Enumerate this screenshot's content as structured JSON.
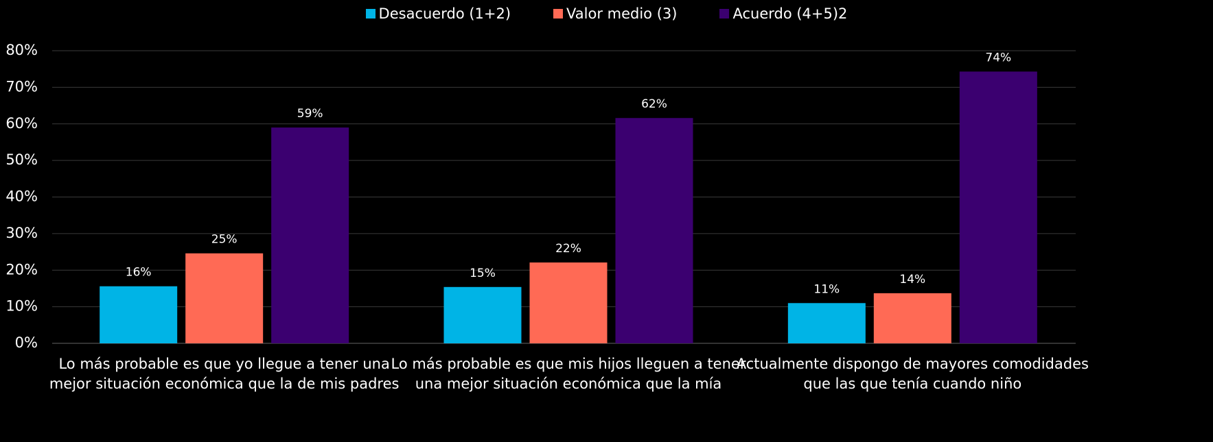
{
  "chart_data": {
    "type": "bar",
    "categories": [
      "Lo más probable es que yo llegue a tener una mejor situación económica que la de mis padres",
      "Lo más probable es que mis hijos lleguen a tener una mejor situación económica que la mía",
      "Actualmente dispongo de mayores comodidades que las que tenía cuando niño"
    ],
    "series": [
      {
        "name": "Desacuerdo (1+2)",
        "color": "#00b4e6",
        "values": [
          15.6,
          15.4,
          11.0
        ],
        "value_labels": [
          "16%",
          "15%",
          "11%"
        ]
      },
      {
        "name": "Valor medio (3)",
        "color": "#ff6a55",
        "values": [
          24.6,
          22.1,
          13.7
        ],
        "value_labels": [
          "25%",
          "22%",
          "14%"
        ]
      },
      {
        "name": "Acuerdo (4+5)2",
        "color": "#3b0070",
        "values": [
          59.0,
          61.6,
          74.3
        ],
        "value_labels": [
          "59%",
          "62%",
          "74%"
        ]
      }
    ],
    "ylim": [
      0,
      80
    ],
    "yticks": [
      {
        "value": 0,
        "label": "0%"
      },
      {
        "value": 10,
        "label": "10%"
      },
      {
        "value": 20,
        "label": "20%"
      },
      {
        "value": 30,
        "label": "30%"
      },
      {
        "value": 40,
        "label": "40%"
      },
      {
        "value": 50,
        "label": "50%"
      },
      {
        "value": 60,
        "label": "60%"
      },
      {
        "value": 70,
        "label": "70%"
      },
      {
        "value": 80,
        "label": "80%"
      }
    ],
    "grid": true,
    "legend": "top"
  }
}
